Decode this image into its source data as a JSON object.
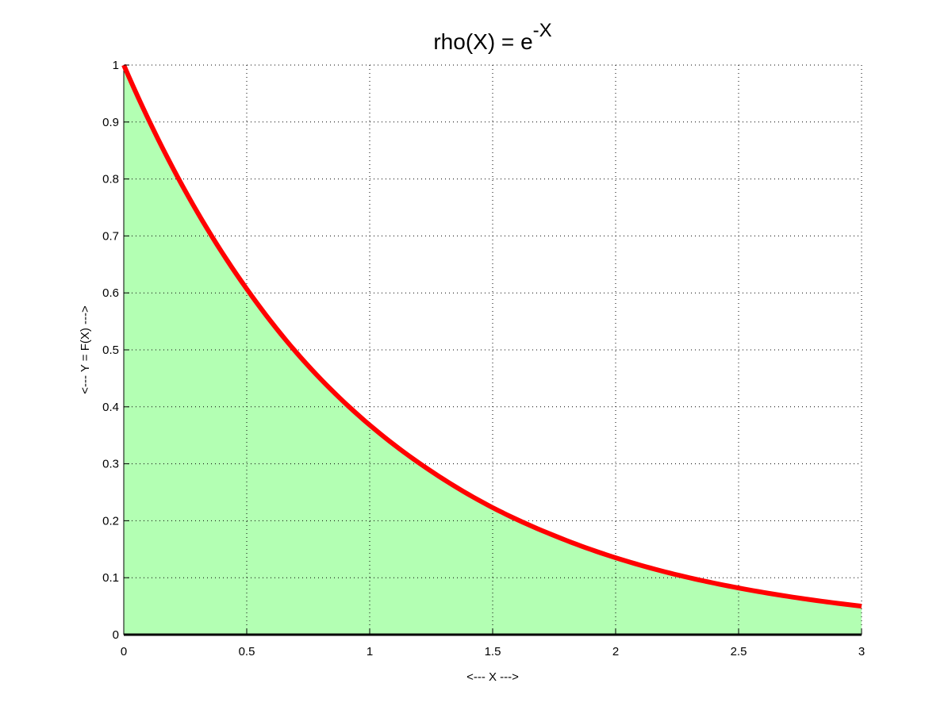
{
  "chart_data": {
    "type": "area",
    "title": {
      "base": "rho(X) = e",
      "superscript": "-X"
    },
    "xlabel": "<--- X --->",
    "ylabel": "<--- Y = F(X) --->",
    "xlim": [
      0,
      3
    ],
    "ylim": [
      0,
      1
    ],
    "xticks": [
      0,
      0.5,
      1,
      1.5,
      2,
      2.5,
      3
    ],
    "xtick_labels": [
      "0",
      "0.5",
      "1",
      "1.5",
      "2",
      "2.5",
      "3"
    ],
    "yticks": [
      0,
      0.1,
      0.2,
      0.3,
      0.4,
      0.5,
      0.6,
      0.7,
      0.8,
      0.9,
      1
    ],
    "ytick_labels": [
      "0",
      "0.1",
      "0.2",
      "0.3",
      "0.4",
      "0.5",
      "0.6",
      "0.7",
      "0.8",
      "0.9",
      "1"
    ],
    "grid": true,
    "x": [
      0,
      0.25,
      0.5,
      0.75,
      1,
      1.25,
      1.5,
      1.75,
      2,
      2.25,
      2.5,
      2.75,
      3
    ],
    "y": [
      1,
      0.779,
      0.607,
      0.472,
      0.368,
      0.287,
      0.223,
      0.174,
      0.135,
      0.105,
      0.082,
      0.064,
      0.05
    ],
    "line_color": "#ff0000",
    "fill_color": "#b3ffb3",
    "baseline_color": "#000000"
  }
}
